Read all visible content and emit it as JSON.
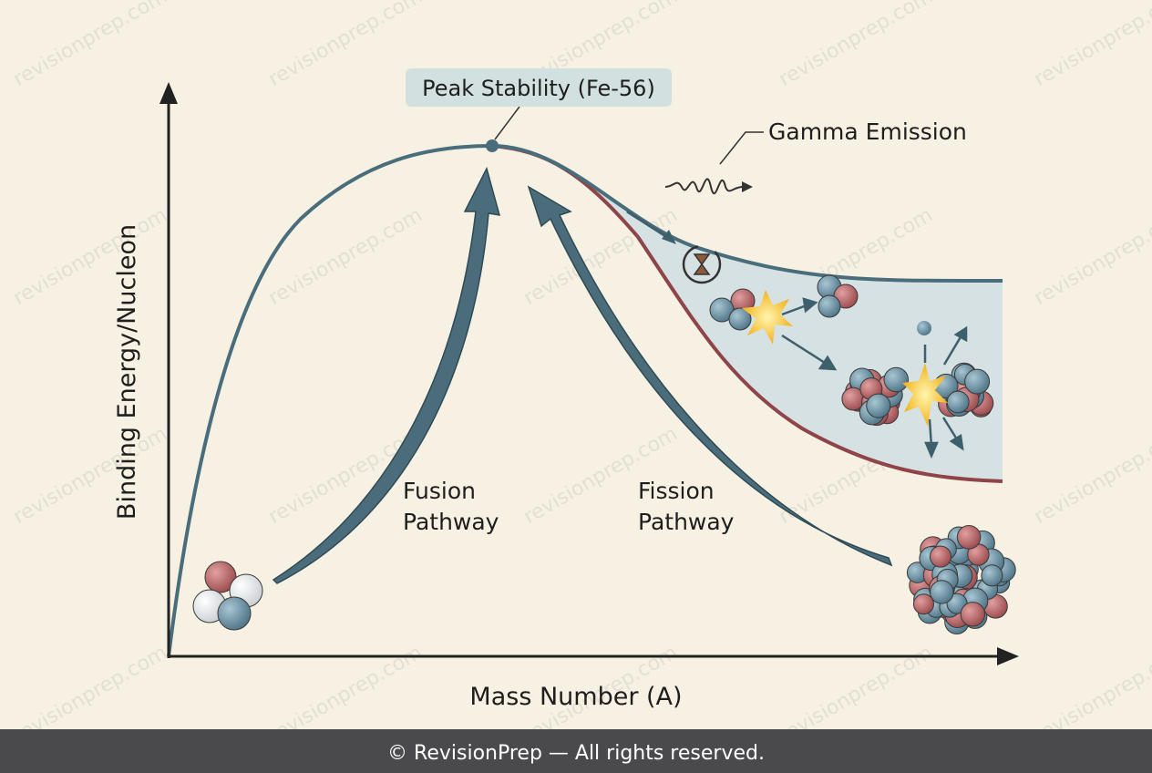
{
  "diagram": {
    "y_axis_label": "Binding Energy/Nucleon",
    "x_axis_label": "Mass Number (A)",
    "peak_label": "Peak Stability (Fe-56)",
    "gamma_label": "Gamma Emission",
    "fusion_label": [
      "Fusion",
      "Pathway"
    ],
    "fission_label": [
      "Fission",
      "Pathway"
    ]
  },
  "watermark": "revisionprep.com",
  "footer": "© RevisionPrep — All rights reserved."
}
